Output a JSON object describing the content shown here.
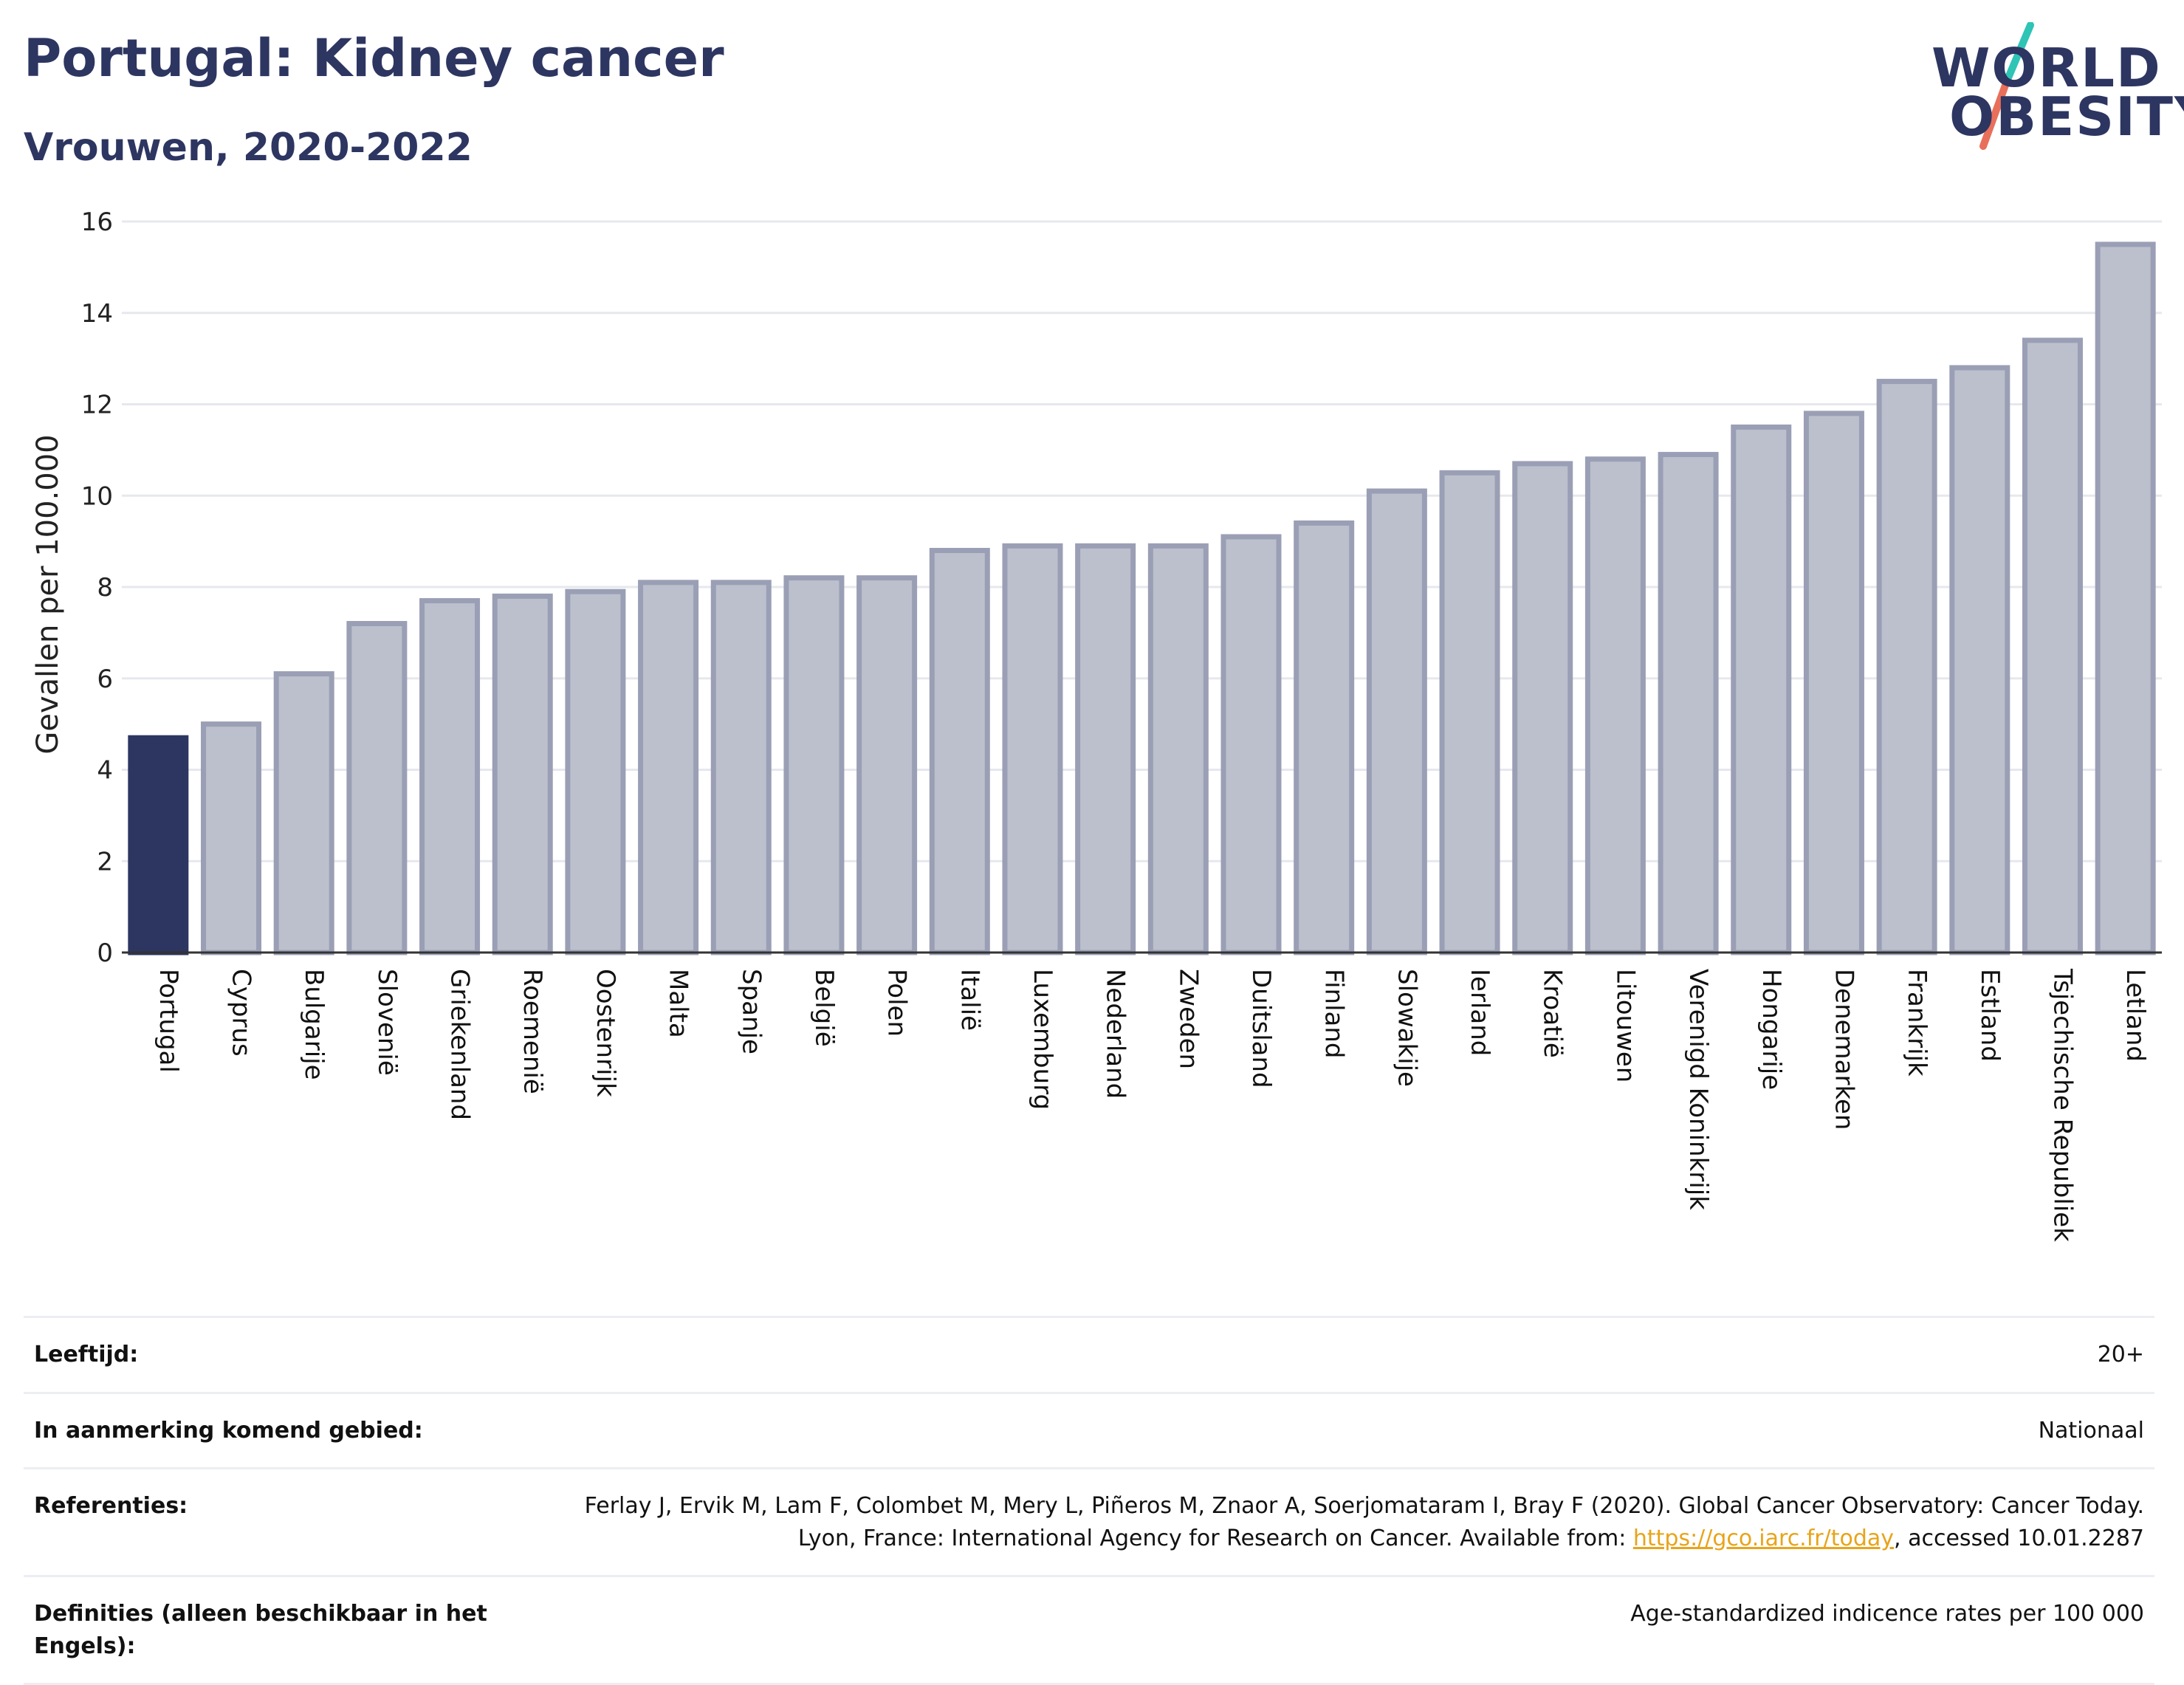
{
  "header": {
    "title": "Portugal: Kidney cancer",
    "subtitle": "Vrouwen, 2020-2022"
  },
  "logo": {
    "line1": "WORLD",
    "line2": "OBESITY",
    "colors": {
      "text": "#2d3561",
      "slash_top": "#2ec4b6",
      "slash_bottom": "#e8705a"
    }
  },
  "colors": {
    "highlight_bar": "#2d3561",
    "bar_fill": "#bcc0cd",
    "bar_stroke": "#9a9fb5",
    "grid": "#e6e8ee",
    "link": "#e8a41a"
  },
  "chart_data": {
    "type": "bar",
    "title": "Portugal: Kidney cancer",
    "subtitle": "Vrouwen, 2020-2022",
    "ylabel": "Gevallen per 100.000",
    "ylim": [
      0,
      16
    ],
    "yticks": [
      0,
      2,
      4,
      6,
      8,
      10,
      12,
      14,
      16
    ],
    "grid": true,
    "highlight": "Portugal",
    "categories": [
      "Portugal",
      "Cyprus",
      "Bulgarije",
      "Slovenië",
      "Griekenland",
      "Roemenië",
      "Oostenrijk",
      "Malta",
      "Spanje",
      "België",
      "Polen",
      "Italië",
      "Luxemburg",
      "Nederland",
      "Zweden",
      "Duitsland",
      "Finland",
      "Slowakije",
      "Ierland",
      "Kroatië",
      "Litouwen",
      "Verenigd Koninkrijk",
      "Hongarije",
      "Denemarken",
      "Frankrijk",
      "Estland",
      "Tsjechische Republiek",
      "Letland"
    ],
    "values": [
      4.7,
      5.0,
      6.1,
      7.2,
      7.7,
      7.8,
      7.9,
      8.1,
      8.1,
      8.2,
      8.2,
      8.8,
      8.9,
      8.9,
      8.9,
      9.1,
      9.4,
      10.1,
      10.5,
      10.7,
      10.8,
      10.9,
      11.5,
      11.8,
      12.5,
      12.8,
      13.4,
      15.5
    ]
  },
  "meta": [
    {
      "label": "Leeftijd:",
      "value": "20+"
    },
    {
      "label": "In aanmerking komend gebied:",
      "value": "Nationaal"
    },
    {
      "label": "Referenties:",
      "value_pre": "Ferlay J, Ervik M, Lam F, Colombet M, Mery L, Piñeros M, Znaor A, Soerjomataram I, Bray F (2020). Global Cancer Observatory: Cancer Today. Lyon, France: International Agency for Research on Cancer. Available from: ",
      "link": "https://gco.iarc.fr/today",
      "value_post": ", accessed 10.01.2287"
    },
    {
      "label": "Definities (alleen beschikbaar in het Engels):",
      "value": "Age-standardized indicence rates per 100 000"
    }
  ]
}
